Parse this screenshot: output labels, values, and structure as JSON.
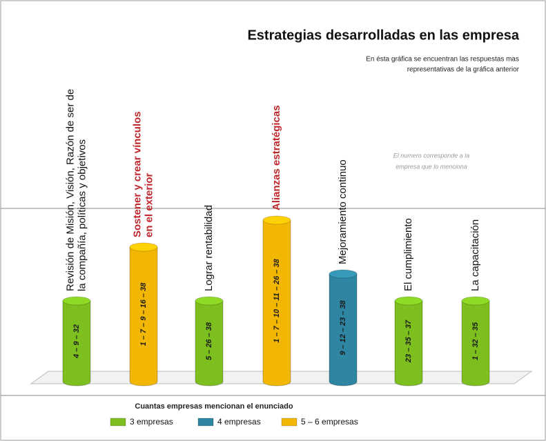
{
  "chart_data": {
    "type": "bar",
    "title": "Estrategias desarrolladas en las empresa",
    "subtitle": [
      "En ésta gráfica se encuentran las respuestas mas",
      "representativas de la gráfica anterior"
    ],
    "annotation": [
      "El numero corresponde a la",
      "empresa que lo menciona"
    ],
    "categories": [
      [
        "Revisión de Misión, Visión, Razón de ser de",
        "la compañía, políticas y objetivos"
      ],
      [
        "Sostener y crear vínculos",
        "en el exterior"
      ],
      [
        "Lograr rentabilidad"
      ],
      [
        "Alianzas estratégicas"
      ],
      [
        "Mejoramiento continuo"
      ],
      [
        "El cumplimiento"
      ],
      [
        "La capacitación"
      ]
    ],
    "label_colors": [
      "#111111",
      "#c0272d",
      "#111111",
      "#c0272d",
      "#111111",
      "#111111",
      "#111111"
    ],
    "values": [
      3,
      5,
      3,
      6,
      4,
      3,
      3
    ],
    "bar_labels": [
      "4 – 9 – 32",
      "1 – 7 – 9 – 16 – 38",
      "5 – 26 – 38",
      "1 – 7 – 10 – 11 – 26 – 38",
      "9 – 12 – 23 – 38",
      "23 – 35 – 37",
      "1 – 32 – 35"
    ],
    "colors": [
      "#7dbf1f",
      "#f2b705",
      "#7dbf1f",
      "#f2b705",
      "#2f86a3",
      "#7dbf1f",
      "#7dbf1f"
    ],
    "ylim": [
      0,
      7
    ],
    "legend": {
      "title": "Cuantas empresas mencionan el enunciado",
      "items": [
        {
          "name": "3 empresas",
          "color": "#7dbf1f"
        },
        {
          "name": "4 empresas",
          "color": "#2f86a3"
        },
        {
          "name": "5 – 6 empresas",
          "color": "#f2b705"
        }
      ]
    }
  }
}
